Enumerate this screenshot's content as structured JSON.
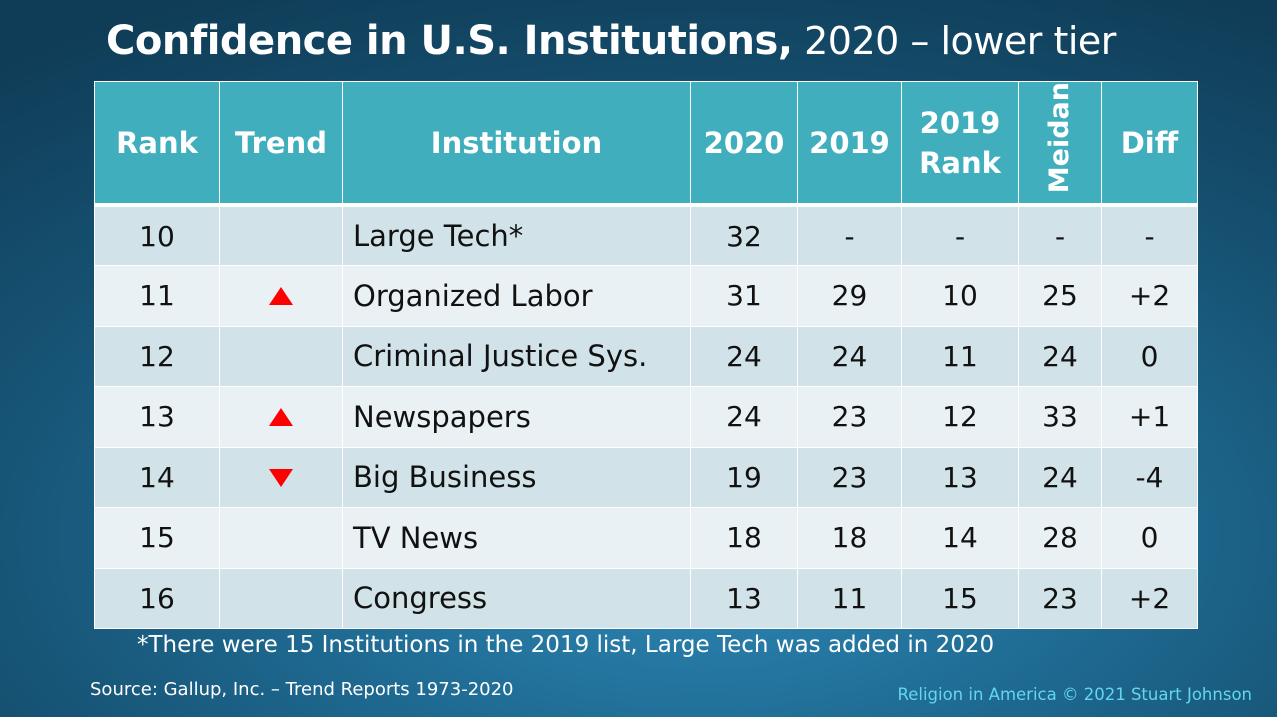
{
  "title": {
    "main": "Confidence in U.S. Institutions,",
    "sub": " 2020 – lower tier"
  },
  "table": {
    "headers": {
      "rank": "Rank",
      "trend": "Trend",
      "institution": "Institution",
      "y2020": "2020",
      "y2019": "2019",
      "rank2019_line1": "2019",
      "rank2019_line2": "Rank",
      "median": "Meidan",
      "diff": "Diff"
    },
    "rows": [
      {
        "rank": "10",
        "trend": "",
        "institution": "Large Tech*",
        "y2020": "32",
        "y2019": "-",
        "rank2019": "-",
        "median": "-",
        "diff": "-"
      },
      {
        "rank": "11",
        "trend": "up",
        "institution": "Organized Labor",
        "y2020": "31",
        "y2019": "29",
        "rank2019": "10",
        "median": "25",
        "diff": "+2"
      },
      {
        "rank": "12",
        "trend": "",
        "institution": "Criminal Justice Sys.",
        "y2020": "24",
        "y2019": "24",
        "rank2019": "11",
        "median": "24",
        "diff": "0"
      },
      {
        "rank": "13",
        "trend": "up",
        "institution": "Newspapers",
        "y2020": "24",
        "y2019": "23",
        "rank2019": "12",
        "median": "33",
        "diff": "+1"
      },
      {
        "rank": "14",
        "trend": "down",
        "institution": "Big Business",
        "y2020": "19",
        "y2019": "23",
        "rank2019": "13",
        "median": "24",
        "diff": "-4"
      },
      {
        "rank": "15",
        "trend": "",
        "institution": "TV News",
        "y2020": "18",
        "y2019": "18",
        "rank2019": "14",
        "median": "28",
        "diff": "0"
      },
      {
        "rank": "16",
        "trend": "",
        "institution": "Congress",
        "y2020": "13",
        "y2019": "11",
        "rank2019": "15",
        "median": "23",
        "diff": "+2"
      }
    ]
  },
  "footnote": "*There were 15 Institutions in the 2019 list, Large Tech was added in 2020",
  "source": "Source: Gallup, Inc. – Trend Reports 1973-2020",
  "credit": "Religion in America © 2021 Stuart Johnson",
  "colors": {
    "header_bg": "#41aebe",
    "row_odd": "#d1e3e9",
    "row_even": "#e9f1f4",
    "trend_marker": "#ff0000",
    "credit_text": "#63d6ef"
  },
  "icons": {
    "up": "triangle-up-icon",
    "down": "triangle-down-icon"
  }
}
